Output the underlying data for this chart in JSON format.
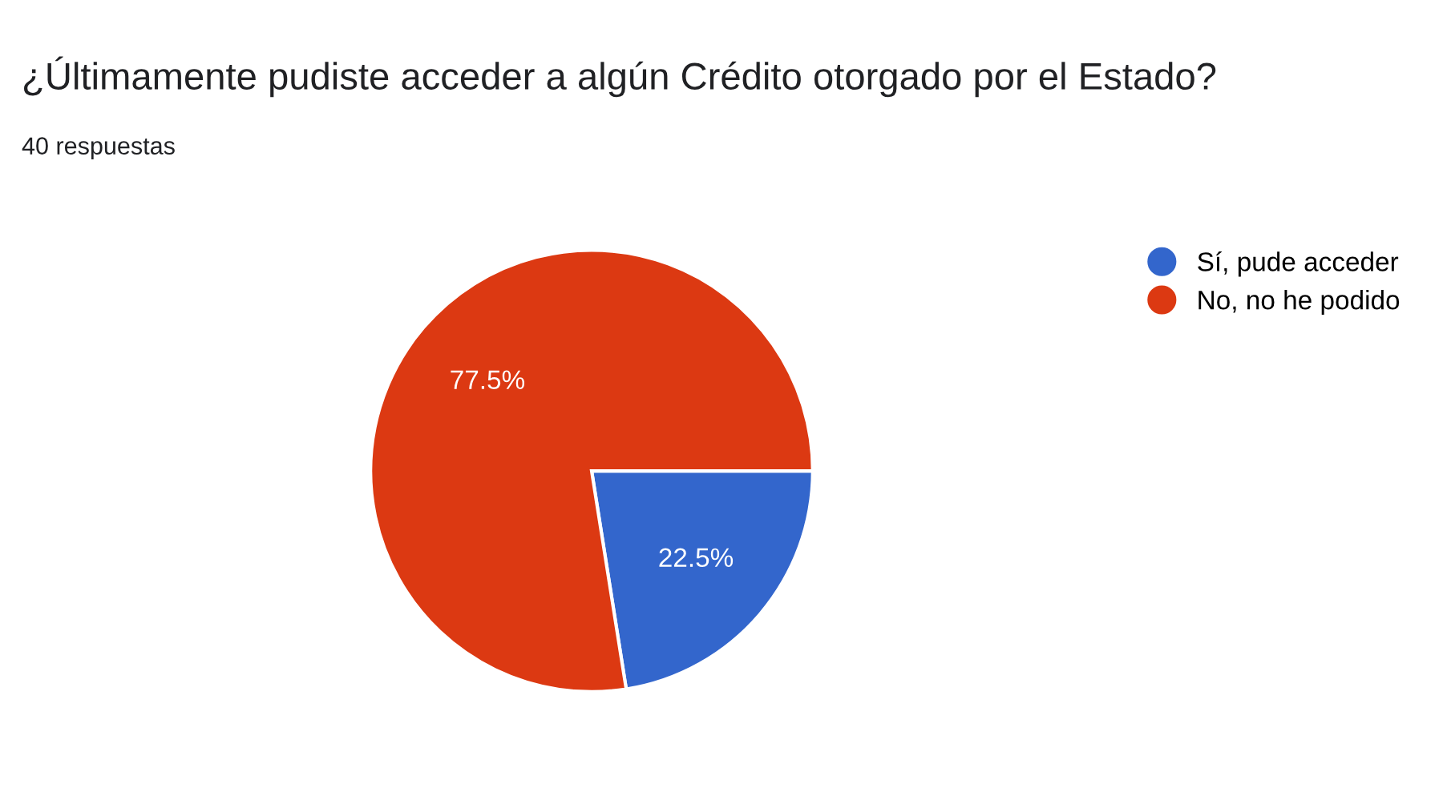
{
  "chart_data": {
    "type": "pie",
    "title": "¿Últimamente pudiste acceder a algún Crédito otorgado por el Estado?",
    "subtitle": "40 respuestas",
    "categories": [
      "Sí, pude acceder",
      "No, no he podido"
    ],
    "values": [
      22.5,
      77.5
    ],
    "colors": [
      "#3366cc",
      "#dc3912"
    ],
    "value_labels": [
      "22.5%",
      "77.5%"
    ],
    "legend": "top right"
  }
}
